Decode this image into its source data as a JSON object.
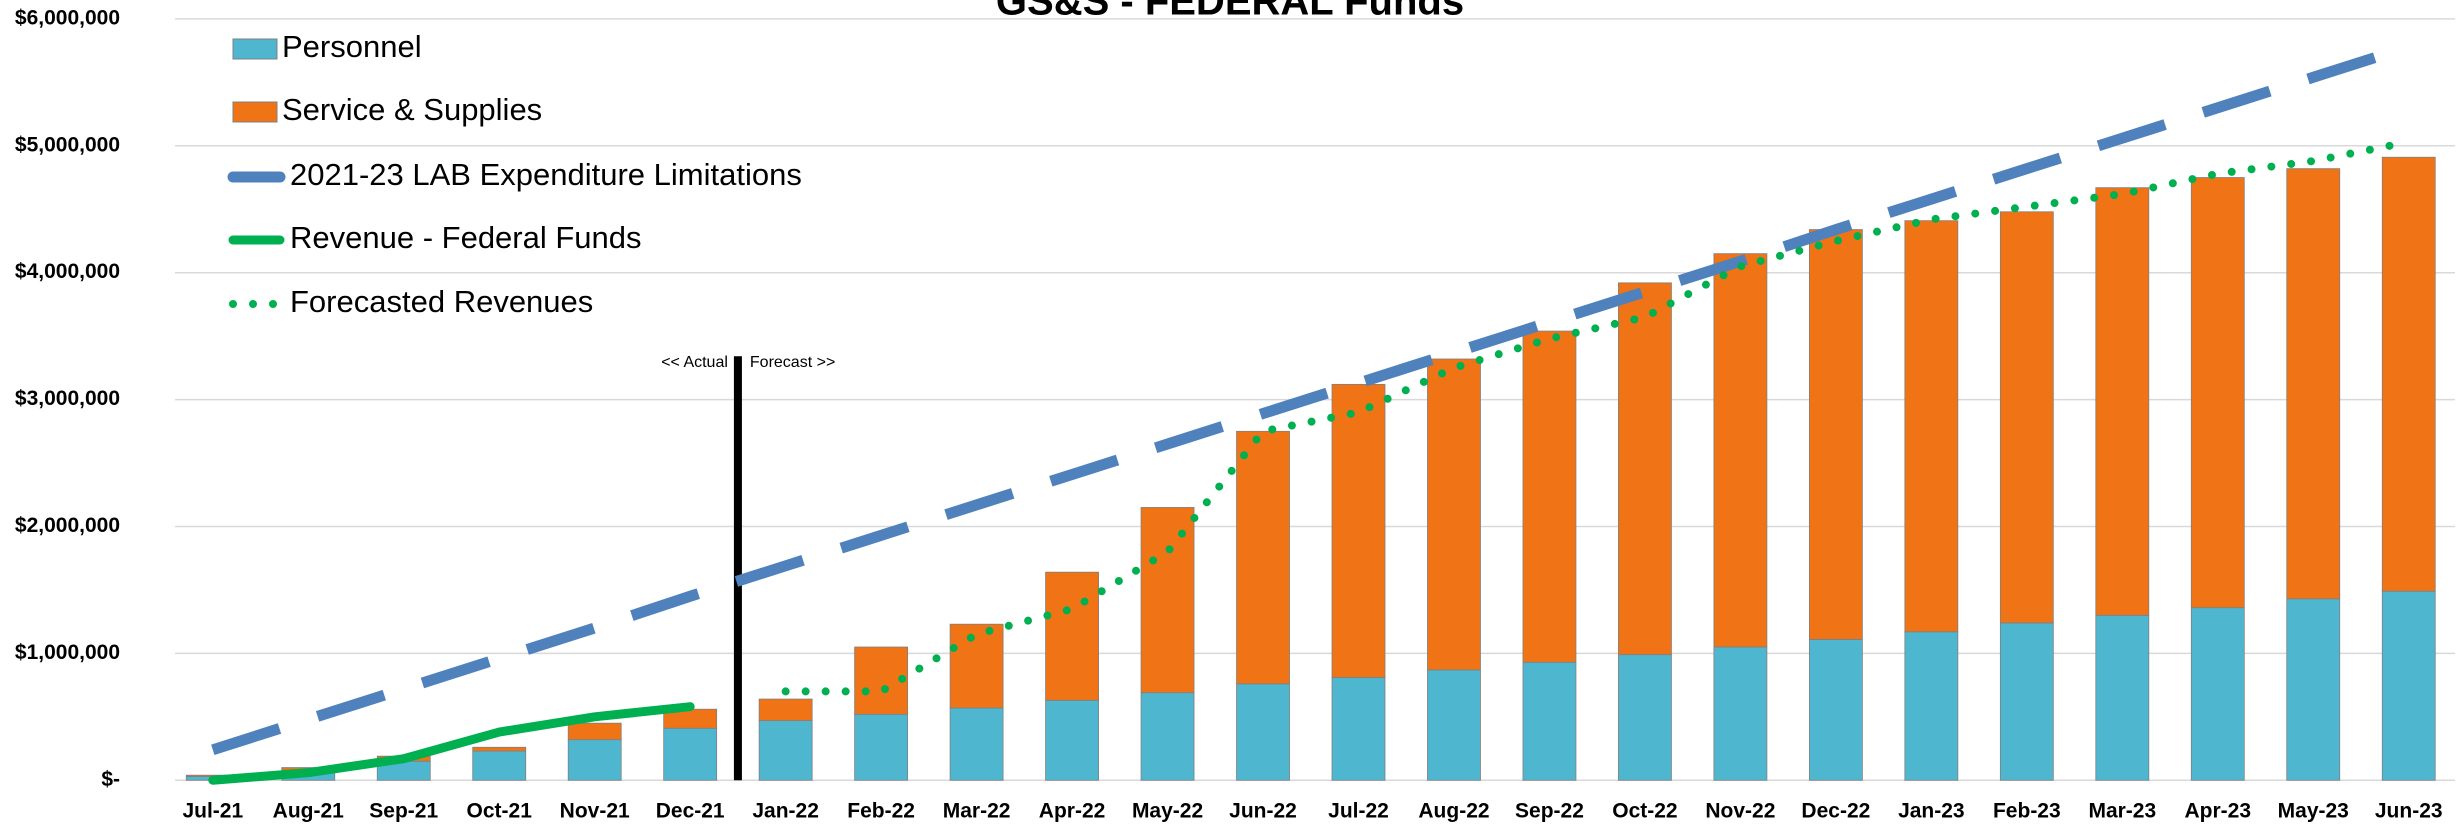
{
  "chart_data": {
    "type": "bar",
    "stacked": true,
    "title": "GS&S - FEDERAL Funds",
    "annotations": [
      "<< Actual",
      "Forecast >>"
    ],
    "categories": [
      "Jul-21",
      "Aug-21",
      "Sep-21",
      "Oct-21",
      "Nov-21",
      "Dec-21",
      "Jan-22",
      "Feb-22",
      "Mar-22",
      "Apr-22",
      "May-22",
      "Jun-22",
      "Jul-22",
      "Aug-22",
      "Sep-22",
      "Oct-22",
      "Nov-22",
      "Dec-22",
      "Jan-23",
      "Feb-23",
      "Mar-23",
      "Apr-23",
      "May-23",
      "Jun-23"
    ],
    "series": [
      {
        "name": "Personnel",
        "type": "bar",
        "color": "#4fb6d0",
        "values": [
          30000,
          80000,
          150000,
          230000,
          320000,
          410000,
          470000,
          520000,
          570000,
          630000,
          690000,
          760000,
          810000,
          870000,
          930000,
          990000,
          1050000,
          1110000,
          1170000,
          1240000,
          1300000,
          1360000,
          1430000,
          1490000
        ]
      },
      {
        "name": "Service & Supplies",
        "type": "bar",
        "color": "#f07415",
        "values": [
          10000,
          20000,
          40000,
          30000,
          130000,
          150000,
          170000,
          530000,
          660000,
          1010000,
          1460000,
          1990000,
          2310000,
          2450000,
          2610000,
          2930000,
          3100000,
          3230000,
          3240000,
          3240000,
          3370000,
          3390000,
          3390000,
          3420000
        ]
      },
      {
        "name": "2021-23 LAB Expenditure Limitations",
        "type": "line",
        "style": "dashed",
        "color": "#4f81bd",
        "values": [
          240000,
          480000,
          720000,
          960000,
          1200000,
          1450000,
          1690000,
          1930000,
          2170000,
          2410000,
          2650000,
          2890000,
          3130000,
          3370000,
          3610000,
          3850000,
          4090000,
          4340000,
          4580000,
          4820000,
          5060000,
          5300000,
          5540000,
          5780000
        ]
      },
      {
        "name": "Revenue - Federal Funds",
        "type": "line",
        "style": "solid",
        "color": "#00b050",
        "values": [
          0,
          60000,
          170000,
          380000,
          500000,
          580000,
          null,
          null,
          null,
          null,
          null,
          null,
          null,
          null,
          null,
          null,
          null,
          null,
          null,
          null,
          null,
          null,
          null,
          null
        ]
      },
      {
        "name": "Forecasted Revenues",
        "type": "line",
        "style": "dotted",
        "color": "#00b050",
        "values": [
          null,
          null,
          null,
          null,
          null,
          null,
          700000,
          700000,
          1150000,
          1350000,
          1800000,
          2750000,
          2900000,
          3250000,
          3480000,
          3650000,
          4050000,
          4250000,
          4420000,
          4520000,
          4620000,
          4780000,
          4880000,
          5030000
        ]
      }
    ],
    "ylim": [
      0,
      6000000
    ],
    "yticks": [
      {
        "value": 0,
        "label": "$-"
      },
      {
        "value": 1000000,
        "label": "$1,000,000"
      },
      {
        "value": 2000000,
        "label": "$2,000,000"
      },
      {
        "value": 3000000,
        "label": "$3,000,000"
      },
      {
        "value": 4000000,
        "label": "$4,000,000"
      },
      {
        "value": 5000000,
        "label": "$5,000,000"
      },
      {
        "value": 6000000,
        "label": "$6,000,000"
      }
    ],
    "grid": true,
    "legend": "top-left"
  }
}
